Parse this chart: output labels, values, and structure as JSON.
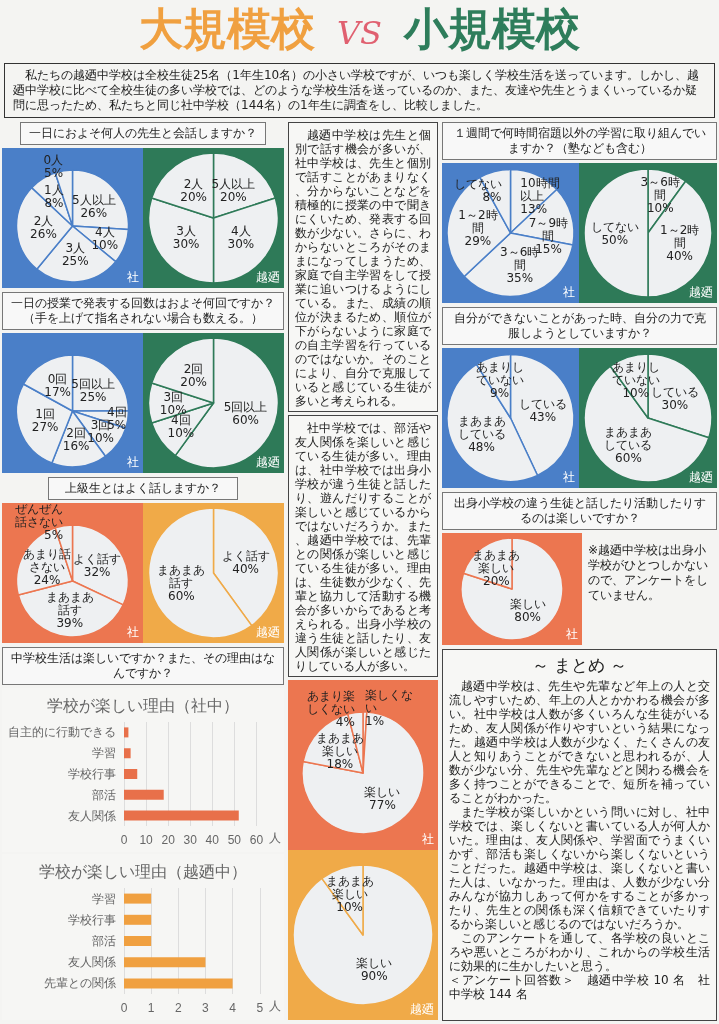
{
  "chart_data": [
    {
      "type": "other",
      "title": "大規模校 VS 小規模校",
      "subtitle": "私たちの越廼中学校は全校生徒25名（1年生10名）の小さい学校ですが、いつも楽しく学校生活を送っています。しかし、越廼中学校に比べて全校生徒の多い学校では、どのような学校生活を送っているのか、また、友達や先生とうまくいっているか疑問に思ったため、私たちと同じ社中学校（144名）の1年生に調査をし、比較しました。"
    },
    {
      "type": "other",
      "title": "一日におよそ何人の先生と会話しますか？"
    },
    {
      "type": "pie",
      "categories": [
        "5人以上",
        "4人",
        "3人",
        "2人",
        "1人",
        "0人"
      ],
      "series": [
        {
          "name": "社",
          "color": "#4a7fc8",
          "values": [
            26,
            10,
            25,
            26,
            8,
            5
          ],
          "value_labels": [
            "26%",
            "10%",
            "25%",
            "26%",
            "8%",
            "5%"
          ]
        }
      ]
    },
    {
      "type": "pie",
      "categories": [
        "5人以上",
        "4人",
        "3人",
        "2人"
      ],
      "series": [
        {
          "name": "越廼",
          "color": "#2e7a58",
          "values": [
            20,
            30,
            30,
            20
          ],
          "value_labels": [
            "20%",
            "30%",
            "30%",
            "20%"
          ]
        }
      ]
    },
    {
      "type": "other",
      "title": "一日の授業で発表する回数はおよそ何回ですか？",
      "subtitle": "（手を上げて指名されない場合も数える。）"
    },
    {
      "type": "pie",
      "categories": [
        "5回以上",
        "4回",
        "3回",
        "2回",
        "1回",
        "0回"
      ],
      "series": [
        {
          "name": "社",
          "color": "#4a7fc8",
          "values": [
            25,
            5,
            10,
            16,
            27,
            17
          ],
          "value_labels": [
            "25%",
            "5%",
            "10%",
            "16%",
            "27%",
            "17%"
          ]
        }
      ]
    },
    {
      "type": "pie",
      "categories": [
        "5回以上",
        "4回",
        "3回",
        "2回"
      ],
      "series": [
        {
          "name": "越廼",
          "color": "#2e7a58",
          "values": [
            60,
            10,
            10,
            20
          ],
          "value_labels": [
            "60%",
            "10%",
            "10%",
            "20%"
          ]
        }
      ]
    },
    {
      "type": "other",
      "title": "上級生とはよく話しますか？"
    },
    {
      "type": "pie",
      "categories": [
        "よく話す",
        "まあまあ話す",
        "あまり話さない",
        "ぜんぜん話さない"
      ],
      "series": [
        {
          "name": "社",
          "color": "#ec7650",
          "values": [
            32,
            39,
            24,
            5
          ],
          "value_labels": [
            "32%",
            "39%",
            "24%",
            "5%"
          ]
        }
      ]
    },
    {
      "type": "pie",
      "categories": [
        "よく話す",
        "まあまあ話す"
      ],
      "series": [
        {
          "name": "越廼",
          "color": "#f0aa48",
          "values": [
            40,
            60
          ],
          "value_labels": [
            "40%",
            "60%"
          ]
        }
      ]
    },
    {
      "type": "other",
      "title": "中学校生活は楽しいですか？また、その理由はなんですか？"
    },
    {
      "type": "bar",
      "orientation": "horizontal",
      "title": "学校が楽しい理由（社中）",
      "categories": [
        "自主的に行動できる",
        "学習",
        "学校行事",
        "部活",
        "友人関係"
      ],
      "values": [
        2,
        3,
        6,
        18,
        52
      ],
      "color": "#e8704a",
      "xlim": [
        0,
        60
      ],
      "xticks": [
        0,
        10,
        20,
        30,
        40,
        50,
        60
      ],
      "xlabel": "人",
      "grid": "x"
    },
    {
      "type": "bar",
      "orientation": "horizontal",
      "title": "学校が楽しい理由（越廼中）",
      "categories": [
        "学習",
        "学校行事",
        "部活",
        "友人関係",
        "先輩との関係"
      ],
      "values": [
        1,
        1,
        1,
        3,
        4
      ],
      "color": "#f0a040",
      "xlim": [
        0,
        5
      ],
      "xticks": [
        0,
        1,
        2,
        3,
        4,
        5
      ],
      "xlabel": "人",
      "grid": "x"
    },
    {
      "type": "other",
      "annotations": [
        "越廼中学校は先生と個別で話す機会が多いが、社中学校は、先生と個別で話すことがあまりなく、分からないことなどを積極的に授業の中で聞きにくいため、発表する回数が少ない。さらに、わからないところがそのままになってしまうため、家庭で自主学習をして授業に追いつけるようにしている。また、成績の順位が決まるため、順位が下がらないように家庭での自主学習を行っているのではないか。そのことにより、自分で克服していると感じている生徒が多いと考えられる。"
      ]
    },
    {
      "type": "other",
      "annotations": [
        "社中学校では、部活や友人関係を楽しいと感じている生徒が多い。理由は、社中学校では出身小学校が違う生徒と話したり、遊んだりすることが楽しいと感じているからではないだろうか。また、越廼中学校では、先輩との関係が楽しいと感じている生徒が多い。理由は、生徒数が少なく、先輩と協力して活動する機会が多いからであると考えられる。出身小学校の違う生徒と話したり、友人関係が楽しいと感じたりしている人が多い。"
      ]
    },
    {
      "type": "pie",
      "categories": [
        "楽しくない",
        "楽しい",
        "まあまあ楽しい",
        "あまり楽しくない"
      ],
      "series": [
        {
          "name": "社",
          "color": "#ec7650",
          "values": [
            1,
            77,
            18,
            4
          ],
          "value_labels": [
            "1%",
            "77%",
            "18%",
            "4%"
          ]
        }
      ]
    },
    {
      "type": "pie",
      "categories": [
        "楽しい",
        "まあまあ楽しい"
      ],
      "series": [
        {
          "name": "越廼",
          "color": "#f0aa48",
          "values": [
            90,
            10
          ],
          "value_labels": [
            "90%",
            "10%"
          ]
        }
      ]
    },
    {
      "type": "other",
      "title": "１週間で何時間宿題以外の学習に取り組んでいますか？（塾なども含む）"
    },
    {
      "type": "pie",
      "categories": [
        "10時間以上",
        "7～9時間",
        "3～6時間",
        "1～2時間",
        "してない"
      ],
      "series": [
        {
          "name": "社",
          "color": "#4a7fc8",
          "values": [
            13,
            15,
            35,
            29,
            8
          ],
          "value_labels": [
            "13%",
            "15%",
            "35%",
            "29%",
            "8%"
          ]
        }
      ]
    },
    {
      "type": "pie",
      "categories": [
        "3～6時間",
        "1～2時間",
        "してない"
      ],
      "series": [
        {
          "name": "越廼",
          "color": "#2e7a58",
          "values": [
            10,
            40,
            50
          ],
          "value_labels": [
            "10%",
            "40%",
            "50%"
          ]
        }
      ]
    },
    {
      "type": "other",
      "title": "自分ができないことがあった時、自分の力で克服しようとしていますか？"
    },
    {
      "type": "pie",
      "categories": [
        "している",
        "まあまあしている",
        "あまりしていない"
      ],
      "series": [
        {
          "name": "社",
          "color": "#4a7fc8",
          "values": [
            43,
            48,
            9
          ],
          "value_labels": [
            "43%",
            "48%",
            "9%"
          ]
        }
      ]
    },
    {
      "type": "pie",
      "categories": [
        "している",
        "まあまあしている",
        "あまりしていない"
      ],
      "series": [
        {
          "name": "越廼",
          "color": "#2e7a58",
          "values": [
            30,
            60,
            10
          ],
          "value_labels": [
            "30%",
            "60%",
            "10%"
          ]
        }
      ]
    },
    {
      "type": "other",
      "title": "出身小学校の違う生徒と話したり活動したりするのは楽しいですか？"
    },
    {
      "type": "pie",
      "categories": [
        "楽しい",
        "まあまあ楽しい"
      ],
      "annotations": [
        "※越廼中学校は出身小学校がひとつしかないので、アンケートをしていません。"
      ],
      "series": [
        {
          "name": "社",
          "color": "#ec7650",
          "values": [
            80,
            20
          ],
          "value_labels": [
            "80%",
            "20%"
          ]
        }
      ]
    },
    {
      "type": "other",
      "title": "～ まとめ ～",
      "annotations": [
        "越廼中学校は、先生や先輩など年上の人と交流しやすいため、年上の人とかかわる機会が多い。社中学校は人数が多くいろんな生徒がいるため、友人関係が作りやすいという結果になった。越廼中学校は人数が少なく、たくさんの友人と知りあうことができないと思われるが、人数が少ない分、先生や先輩などと関わる機会を多く持つことができることで、短所を補っていることがわかった。",
        "また学校が楽しいかという問いに対し、社中学校では、楽しくないと書いている人が何人かいた。理由は、友人関係や、学習面でうまくいかず、部活も楽しくないから楽しくないということだった。越廼中学校は、楽しくないと書いた人は、いなかった。理由は、人数が少ない分みんなが協力しあって何かをすることが多かったり、先生との関係も深く信頼できていたりするから楽しいと感じるのではないだろうか。",
        "このアンケートを通して、各学校の良いところや悪いところがわかり、これからの学校生活に効果的に生かしたいと思う。",
        "＜アンケート回答数＞　越廼中学校 10 名　社中学校 144 名"
      ]
    }
  ]
}
